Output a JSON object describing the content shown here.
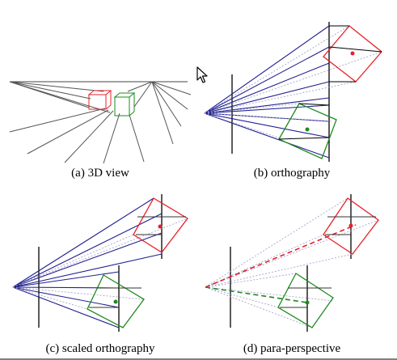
{
  "captions": {
    "a": "(a) 3D view",
    "b": "(b) orthography",
    "c": "(c) scaled orthography",
    "d": "(d) para-perspective"
  },
  "colors": {
    "ray": "#1f1f8f",
    "thin": "#9a9ac8",
    "red": "#e8202a",
    "green": "#1e8a1e",
    "ink": "#000000",
    "grid": "#555555"
  }
}
